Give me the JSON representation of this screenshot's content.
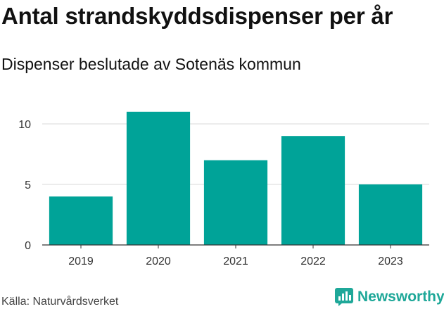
{
  "title": "Antal strandskyddsdispenser per år",
  "subtitle": "Dispenser beslutade av Sotenäs kommun",
  "source": "Källa: Naturvårdsverket",
  "brand": {
    "name": "Newsworthy",
    "icon": "newsworthy-logo-icon"
  },
  "colors": {
    "bar": "#00a398",
    "grid": "#d9d9d9",
    "axis": "#333333",
    "brand": "#1fa899"
  },
  "chart_data": {
    "type": "bar",
    "title": "Antal strandskyddsdispenser per år",
    "subtitle": "Dispenser beslutade av Sotenäs kommun",
    "xlabel": "",
    "ylabel": "",
    "categories": [
      "2019",
      "2020",
      "2021",
      "2022",
      "2023"
    ],
    "values": [
      4,
      11,
      7,
      9,
      5
    ],
    "yticks": [
      0,
      5,
      10
    ],
    "ylim": [
      0,
      12
    ],
    "grid": true
  }
}
